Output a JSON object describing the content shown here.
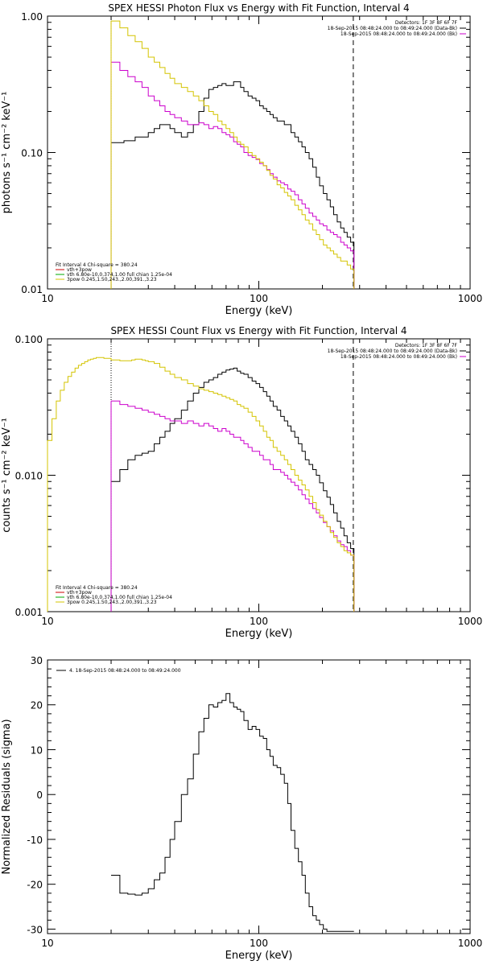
{
  "chart_data": [
    {
      "type": "line",
      "title": "SPEX HESSI Photon Flux vs Energy with Fit Function, Interval 4",
      "xlabel": "Energy (keV)",
      "ylabel": "photons s⁻¹ cm⁻² keV⁻¹",
      "xscale": "log",
      "yscale": "log",
      "xlim": [
        10,
        1000
      ],
      "ylim": [
        0.01,
        1.0
      ],
      "x_ticks": [
        "10",
        "100",
        "1000"
      ],
      "y_ticks": [
        "0.01",
        "0.10",
        "1.00"
      ],
      "legend_top_right": [
        "Detectors: 1F 3F 8F 6F 7F",
        "18-Sep-2015 08:48:24.000 to 08:49:24.000 (Data-Bk)",
        "18-Sep-2015 08:48:24.000 to 08:49:24.000 (Bk)"
      ],
      "legend_bottom_left": [
        "Fit Interval 4   Chi-square = 380.24",
        "vth+3pow",
        "vth 6.80e-10,0.374,1.00  full chian 1.25e-04",
        "3pow 0.245,1.50,243.,2.00,391.,3.23"
      ],
      "vlines": {
        "dotted": 20.0,
        "dashed": 280.0
      },
      "edges": [
        20,
        21,
        22,
        23,
        24,
        25,
        26,
        27,
        28,
        29,
        30,
        32,
        34,
        36,
        38,
        40,
        43,
        46,
        49,
        52,
        55,
        58,
        61,
        64,
        67,
        70,
        73,
        76,
        79,
        82,
        85,
        89,
        93,
        97,
        101,
        105,
        109,
        113,
        117,
        122,
        127,
        132,
        137,
        142,
        148,
        154,
        160,
        166,
        173,
        180,
        187,
        194,
        202,
        210,
        218,
        226,
        235,
        244,
        253,
        262,
        272,
        282
      ],
      "series": [
        {
          "name": "Data-Bk",
          "color": "#000000",
          "values": [
            0.118,
            0.118,
            0.118,
            0.122,
            0.122,
            0.122,
            0.13,
            0.13,
            0.13,
            0.13,
            0.14,
            0.15,
            0.16,
            0.16,
            0.15,
            0.14,
            0.13,
            0.14,
            0.16,
            0.2,
            0.25,
            0.29,
            0.3,
            0.31,
            0.32,
            0.31,
            0.31,
            0.33,
            0.33,
            0.3,
            0.28,
            0.26,
            0.25,
            0.24,
            0.22,
            0.21,
            0.2,
            0.19,
            0.18,
            0.17,
            0.17,
            0.16,
            0.16,
            0.14,
            0.13,
            0.12,
            0.11,
            0.1,
            0.09,
            0.078,
            0.066,
            0.057,
            0.05,
            0.045,
            0.04,
            0.035,
            0.031,
            0.028,
            0.026,
            0.024,
            0.022
          ]
        },
        {
          "name": "Bk",
          "color": "#cc00cc",
          "values": [
            0.46,
            0.46,
            0.4,
            0.4,
            0.36,
            0.36,
            0.33,
            0.33,
            0.3,
            0.3,
            0.26,
            0.24,
            0.22,
            0.2,
            0.19,
            0.18,
            0.17,
            0.16,
            0.16,
            0.165,
            0.16,
            0.15,
            0.155,
            0.15,
            0.14,
            0.135,
            0.13,
            0.12,
            0.115,
            0.11,
            0.1,
            0.095,
            0.092,
            0.089,
            0.083,
            0.08,
            0.075,
            0.07,
            0.066,
            0.062,
            0.06,
            0.058,
            0.054,
            0.052,
            0.049,
            0.045,
            0.042,
            0.039,
            0.036,
            0.034,
            0.032,
            0.03,
            0.029,
            0.027,
            0.026,
            0.025,
            0.024,
            0.022,
            0.021,
            0.02,
            0.019
          ]
        },
        {
          "name": "vth+3pow",
          "color": "#d4c400",
          "values": [
            0.92,
            0.92,
            0.82,
            0.82,
            0.72,
            0.72,
            0.65,
            0.65,
            0.58,
            0.58,
            0.5,
            0.46,
            0.42,
            0.38,
            0.35,
            0.32,
            0.3,
            0.28,
            0.26,
            0.24,
            0.22,
            0.2,
            0.19,
            0.17,
            0.16,
            0.15,
            0.14,
            0.13,
            0.12,
            0.115,
            0.11,
            0.1,
            0.095,
            0.09,
            0.085,
            0.08,
            0.074,
            0.068,
            0.064,
            0.058,
            0.055,
            0.051,
            0.048,
            0.045,
            0.041,
            0.038,
            0.035,
            0.032,
            0.03,
            0.027,
            0.025,
            0.023,
            0.021,
            0.02,
            0.019,
            0.018,
            0.017,
            0.016,
            0.016,
            0.015,
            0.014
          ]
        }
      ]
    },
    {
      "type": "line",
      "title": "SPEX HESSI Count Flux vs Energy with Fit Function, Interval 4",
      "xlabel": "Energy (keV)",
      "ylabel": "counts s⁻¹ cm⁻² keV⁻¹",
      "xscale": "log",
      "yscale": "log",
      "xlim": [
        10,
        1000
      ],
      "ylim": [
        0.001,
        0.1
      ],
      "x_ticks": [
        "10",
        "100",
        "1000"
      ],
      "y_ticks": [
        "0.001",
        "0.010",
        "0.100"
      ],
      "legend_top_right": [
        "Detectors: 1F 3F 8F 6F 7F",
        "18-Sep-2015 08:48:24.000 to 08:49:24.000 (Data-Bk)",
        "18-Sep-2015 08:48:24.000 to 08:49:24.000 (Bk)"
      ],
      "legend_bottom_left": [
        "Fit Interval 4   Chi-square = 380.24",
        "vth+3pow",
        "vth 6.80e-10,0.374,1.00  full chian 1.25e-04",
        "3pow 0.245,1.50,243.,2.00,391.,3.23"
      ],
      "vlines": {
        "dotted": 20.0,
        "dashed": 280.0
      },
      "black_edges": [
        20,
        21,
        22,
        23,
        24,
        25,
        26,
        27,
        28,
        29,
        30,
        32,
        34,
        36,
        38,
        40,
        43,
        46,
        49,
        52,
        55,
        58,
        61,
        64,
        67,
        70,
        73,
        76,
        79,
        82,
        85,
        89,
        93,
        97,
        101,
        105,
        109,
        113,
        117,
        122,
        127,
        132,
        137,
        142,
        148,
        154,
        160,
        166,
        173,
        180,
        187,
        194,
        202,
        210,
        218,
        226,
        235,
        244,
        253,
        262,
        272,
        282
      ],
      "series": [
        {
          "name": "Data-Bk",
          "color": "#000000",
          "values": [
            0.009,
            0.009,
            0.011,
            0.011,
            0.013,
            0.013,
            0.014,
            0.014,
            0.0145,
            0.0145,
            0.015,
            0.017,
            0.019,
            0.021,
            0.024,
            0.026,
            0.03,
            0.035,
            0.04,
            0.044,
            0.048,
            0.05,
            0.052,
            0.055,
            0.057,
            0.059,
            0.06,
            0.061,
            0.058,
            0.056,
            0.055,
            0.052,
            0.049,
            0.047,
            0.044,
            0.041,
            0.038,
            0.035,
            0.032,
            0.03,
            0.027,
            0.025,
            0.023,
            0.021,
            0.019,
            0.017,
            0.015,
            0.013,
            0.012,
            0.011,
            0.01,
            0.0088,
            0.0077,
            0.0069,
            0.0061,
            0.0053,
            0.0046,
            0.0041,
            0.0036,
            0.0032,
            0.0029
          ]
        },
        {
          "name": "Bk",
          "color": "#cc00cc",
          "values": [
            0.035,
            0.035,
            0.033,
            0.033,
            0.032,
            0.032,
            0.031,
            0.031,
            0.03,
            0.03,
            0.029,
            0.028,
            0.027,
            0.026,
            0.025,
            0.025,
            0.024,
            0.025,
            0.024,
            0.023,
            0.024,
            0.023,
            0.022,
            0.021,
            0.022,
            0.021,
            0.02,
            0.019,
            0.019,
            0.018,
            0.017,
            0.016,
            0.015,
            0.015,
            0.014,
            0.013,
            0.013,
            0.012,
            0.011,
            0.011,
            0.0105,
            0.01,
            0.0094,
            0.0089,
            0.0084,
            0.0078,
            0.0072,
            0.0067,
            0.0062,
            0.0057,
            0.0053,
            0.0049,
            0.0045,
            0.0042,
            0.0039,
            0.0036,
            0.0033,
            0.0031,
            0.003,
            0.0028,
            0.0026
          ]
        },
        {
          "name": "vth+3pow",
          "color": "#d4c400",
          "edges": [
            10,
            10.5,
            11,
            11.5,
            12,
            12.5,
            13,
            13.5,
            14,
            14.5,
            15,
            15.5,
            16,
            16.5,
            17,
            17.5,
            18,
            18.5,
            19,
            19.5,
            20,
            21,
            22,
            23,
            24,
            25,
            26,
            27,
            28,
            29,
            30,
            32,
            34,
            36,
            38,
            40,
            43,
            46,
            49,
            52,
            55,
            58,
            61,
            64,
            67,
            70,
            73,
            76,
            79,
            82,
            85,
            89,
            93,
            97,
            101,
            105,
            109,
            113,
            117,
            122,
            127,
            132,
            137,
            142,
            148,
            154,
            160,
            166,
            173,
            180,
            187,
            194,
            202,
            210,
            218,
            226,
            235,
            244,
            253,
            262,
            272,
            282
          ],
          "values": [
            0.018,
            0.026,
            0.035,
            0.042,
            0.048,
            0.053,
            0.057,
            0.061,
            0.064,
            0.066,
            0.068,
            0.07,
            0.071,
            0.072,
            0.073,
            0.073,
            0.073,
            0.072,
            0.072,
            0.072,
            0.07,
            0.07,
            0.069,
            0.069,
            0.069,
            0.07,
            0.071,
            0.071,
            0.07,
            0.069,
            0.068,
            0.066,
            0.062,
            0.058,
            0.055,
            0.052,
            0.05,
            0.047,
            0.045,
            0.043,
            0.042,
            0.041,
            0.04,
            0.039,
            0.038,
            0.037,
            0.036,
            0.035,
            0.033,
            0.032,
            0.031,
            0.029,
            0.027,
            0.025,
            0.023,
            0.021,
            0.019,
            0.018,
            0.016,
            0.015,
            0.014,
            0.013,
            0.012,
            0.011,
            0.01,
            0.0092,
            0.0085,
            0.0078,
            0.007,
            0.0063,
            0.0056,
            0.0051,
            0.0046,
            0.0042,
            0.0038,
            0.0035,
            0.0032,
            0.003,
            0.0028,
            0.0027,
            0.0026
          ]
        }
      ]
    },
    {
      "type": "line",
      "title": "",
      "xlabel": "Energy (keV)",
      "ylabel": "Normalized Residuals (sigma)",
      "xscale": "log",
      "yscale": "linear",
      "xlim": [
        10,
        1000
      ],
      "ylim": [
        -31,
        30
      ],
      "x_ticks": [
        "10",
        "100",
        "1000"
      ],
      "y_ticks": [
        "-30",
        "-20",
        "-10",
        "0",
        "10",
        "20",
        "30"
      ],
      "legend": "4. 18-Sep-2015 08:48:24.000 to 08:49:24.000",
      "edges": [
        20,
        21,
        22,
        23,
        24,
        25,
        26,
        27,
        28,
        29,
        30,
        32,
        34,
        36,
        38,
        40,
        43,
        46,
        49,
        52,
        55,
        58,
        61,
        64,
        67,
        70,
        73,
        76,
        79,
        82,
        85,
        89,
        93,
        97,
        101,
        105,
        109,
        113,
        117,
        122,
        127,
        132,
        137,
        142,
        148,
        154,
        160,
        166,
        173,
        180,
        187,
        194,
        202,
        210,
        218,
        226,
        235,
        244,
        253,
        262,
        272,
        282
      ],
      "series": [
        {
          "name": "Residuals",
          "color": "#000000",
          "values": [
            -18,
            -18,
            -22,
            -22,
            -22.2,
            -22.2,
            -22.4,
            -22.4,
            -22,
            -22,
            -21,
            -19,
            -17.5,
            -14,
            -10,
            -6,
            0,
            3.5,
            9,
            14,
            17,
            20,
            19.5,
            20.5,
            21,
            22.5,
            20.5,
            19.5,
            19,
            18.5,
            16.5,
            14.5,
            15.2,
            14.5,
            13,
            12.5,
            10,
            8.5,
            6.5,
            6,
            4.5,
            2.5,
            -2,
            -8,
            -12,
            -15,
            -18,
            -22,
            -25,
            -27,
            -28,
            -29,
            -30,
            -30.5,
            -30.5,
            -30.5,
            -30.5,
            -30.5,
            -30.5,
            -30.5,
            -30.5
          ]
        }
      ]
    }
  ]
}
